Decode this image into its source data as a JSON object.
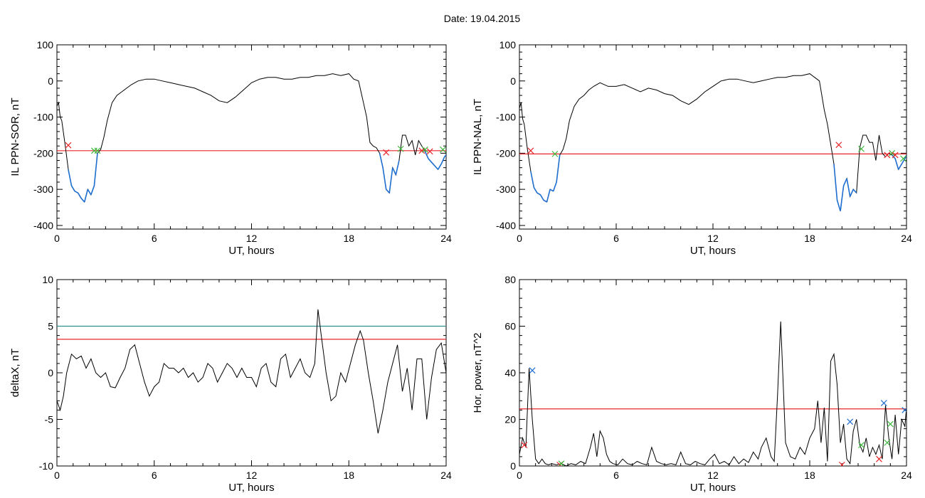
{
  "header": {
    "date_label": "Date:",
    "date_value": "19.04.2015"
  },
  "colors": {
    "trace": "#000000",
    "threshold_red": "#e8262a",
    "threshold_teal": "#2a9090",
    "highlight_blue": "#1f6fd0",
    "marker_red": "#e8262a",
    "marker_green": "#3cb83c",
    "marker_blue": "#1f6fd0"
  },
  "chart_data": [
    {
      "type": "line",
      "xlabel": "UT, hours",
      "ylabel": "IL PPN-SOR, nT",
      "xlim": [
        0,
        24
      ],
      "ylim": [
        -410,
        100
      ],
      "xticks": [
        0,
        6,
        12,
        18,
        24
      ],
      "yticks": [
        100,
        0,
        -100,
        -200,
        -300,
        -400
      ],
      "threshold": -193,
      "series": [
        {
          "x": [
            0,
            0.1,
            0.2,
            0.3,
            0.5,
            0.7,
            0.9,
            1.1,
            1.3,
            1.5,
            1.7,
            1.9,
            2.1,
            2.3,
            2.5,
            2.7,
            2.9,
            3.1,
            3.4,
            3.7,
            4.0,
            4.3,
            4.6,
            5.0,
            5.5,
            6.0,
            6.5,
            7.0,
            7.5,
            8.0,
            8.5,
            9.0,
            9.5,
            10.0,
            10.5,
            11.0,
            11.5,
            12.0,
            12.5,
            13.0,
            13.5,
            14.0,
            14.5,
            15.0,
            15.5,
            16.0,
            16.5,
            17.0,
            17.5,
            18.0,
            18.3,
            18.6,
            18.9,
            19.1,
            19.3,
            19.5,
            19.7,
            19.9,
            20.1,
            20.3,
            20.5,
            20.7,
            20.9,
            21.1,
            21.3,
            21.5,
            21.7,
            21.9,
            22.1,
            22.3,
            22.5,
            22.7,
            22.9,
            23.1,
            23.3,
            23.5,
            23.7,
            23.9,
            24.0
          ],
          "y": [
            -70,
            -60,
            -100,
            -110,
            -175,
            -245,
            -290,
            -305,
            -310,
            -325,
            -335,
            -300,
            -315,
            -290,
            -200,
            -190,
            -155,
            -110,
            -60,
            -40,
            -30,
            -20,
            -10,
            0,
            5,
            5,
            0,
            -5,
            -10,
            -15,
            -20,
            -30,
            -40,
            -55,
            -60,
            -45,
            -25,
            -5,
            5,
            10,
            10,
            5,
            5,
            10,
            10,
            15,
            15,
            20,
            15,
            20,
            5,
            0,
            -60,
            -100,
            -170,
            -180,
            -185,
            -200,
            -240,
            -300,
            -310,
            -240,
            -260,
            -220,
            -150,
            -150,
            -180,
            -165,
            -205,
            -165,
            -180,
            -195,
            -215,
            -225,
            -235,
            -245,
            -230,
            -210,
            -205
          ]
        }
      ],
      "highlight_below_threshold": true,
      "markers": [
        {
          "x": 0.7,
          "y": -178,
          "color": "red"
        },
        {
          "x": 2.3,
          "y": -193,
          "color": "green"
        },
        {
          "x": 2.5,
          "y": -193,
          "color": "green"
        },
        {
          "x": 20.3,
          "y": -198,
          "color": "red"
        },
        {
          "x": 21.2,
          "y": -188,
          "color": "green"
        },
        {
          "x": 22.5,
          "y": -193,
          "color": "red"
        },
        {
          "x": 22.7,
          "y": -190,
          "color": "green"
        },
        {
          "x": 23.0,
          "y": -195,
          "color": "red"
        },
        {
          "x": 23.8,
          "y": -190,
          "color": "green"
        }
      ]
    },
    {
      "type": "line",
      "xlabel": "UT, hours",
      "ylabel": "IL PPN-NAL, nT",
      "xlim": [
        0,
        24
      ],
      "ylim": [
        -410,
        100
      ],
      "xticks": [
        0,
        6,
        12,
        18,
        24
      ],
      "yticks": [
        100,
        0,
        -100,
        -200,
        -300,
        -400
      ],
      "threshold": -202,
      "series": [
        {
          "x": [
            0,
            0.1,
            0.2,
            0.3,
            0.5,
            0.7,
            0.9,
            1.1,
            1.3,
            1.5,
            1.7,
            1.9,
            2.1,
            2.3,
            2.5,
            2.7,
            2.9,
            3.1,
            3.4,
            3.7,
            4.0,
            4.3,
            4.6,
            5.0,
            5.5,
            6.0,
            6.5,
            7.0,
            7.5,
            8.0,
            8.5,
            9.0,
            9.5,
            10.0,
            10.5,
            11.0,
            11.5,
            12.0,
            12.5,
            13.0,
            13.5,
            14.0,
            14.5,
            15.0,
            15.5,
            16.0,
            16.5,
            17.0,
            17.5,
            18.0,
            18.3,
            18.6,
            18.9,
            19.1,
            19.3,
            19.5,
            19.7,
            19.9,
            20.1,
            20.3,
            20.5,
            20.7,
            20.9,
            21.1,
            21.3,
            21.5,
            21.7,
            21.9,
            22.1,
            22.3,
            22.5,
            22.7,
            22.9,
            23.1,
            23.3,
            23.5,
            23.7,
            23.9,
            24.0
          ],
          "y": [
            -75,
            -60,
            -105,
            -120,
            -190,
            -250,
            -295,
            -310,
            -315,
            -330,
            -335,
            -300,
            -305,
            -280,
            -205,
            -190,
            -160,
            -110,
            -70,
            -50,
            -40,
            -25,
            -15,
            -5,
            -15,
            -15,
            -10,
            -20,
            -30,
            -20,
            -25,
            -35,
            -40,
            -55,
            -65,
            -50,
            -30,
            -15,
            0,
            5,
            5,
            0,
            -5,
            0,
            5,
            10,
            10,
            15,
            15,
            20,
            10,
            0,
            -80,
            -120,
            -175,
            -230,
            -330,
            -360,
            -290,
            -270,
            -320,
            -300,
            -310,
            -185,
            -150,
            -150,
            -170,
            -170,
            -220,
            -150,
            -200,
            -210,
            -200,
            -205,
            -215,
            -245,
            -230,
            -215,
            -205
          ]
        }
      ],
      "highlight_below_threshold": true,
      "markers": [
        {
          "x": 0.7,
          "y": -193,
          "color": "red"
        },
        {
          "x": 2.2,
          "y": -202,
          "color": "green"
        },
        {
          "x": 19.8,
          "y": -177,
          "color": "red"
        },
        {
          "x": 21.2,
          "y": -188,
          "color": "green"
        },
        {
          "x": 22.8,
          "y": -205,
          "color": "red"
        },
        {
          "x": 23.1,
          "y": -200,
          "color": "green"
        },
        {
          "x": 23.3,
          "y": -205,
          "color": "red"
        },
        {
          "x": 23.8,
          "y": -215,
          "color": "green"
        }
      ]
    },
    {
      "type": "line",
      "xlabel": "UT, hours",
      "ylabel": "deltaX, nT",
      "xlim": [
        0,
        24
      ],
      "ylim": [
        -10,
        10
      ],
      "xticks": [
        0,
        6,
        12,
        18,
        24
      ],
      "yticks": [
        10,
        5,
        0,
        -5,
        -10
      ],
      "thresholds": [
        {
          "value": 5.0,
          "color": "teal"
        },
        {
          "value": 3.6,
          "color": "red"
        }
      ],
      "series": [
        {
          "x": [
            0,
            0.2,
            0.4,
            0.6,
            0.9,
            1.2,
            1.5,
            1.8,
            2.1,
            2.4,
            2.7,
            3.0,
            3.3,
            3.6,
            3.9,
            4.2,
            4.5,
            4.8,
            5.1,
            5.4,
            5.7,
            6.0,
            6.3,
            6.6,
            6.9,
            7.2,
            7.5,
            7.8,
            8.1,
            8.4,
            8.7,
            9.0,
            9.3,
            9.6,
            9.9,
            10.2,
            10.5,
            10.8,
            11.1,
            11.4,
            11.7,
            12.0,
            12.3,
            12.6,
            12.9,
            13.2,
            13.5,
            13.8,
            14.1,
            14.4,
            14.7,
            15.0,
            15.3,
            15.6,
            15.9,
            16.1,
            16.3,
            16.6,
            16.9,
            17.2,
            17.5,
            17.8,
            18.1,
            18.4,
            18.7,
            18.9,
            19.2,
            19.5,
            19.8,
            20.1,
            20.4,
            20.7,
            21.0,
            21.3,
            21.6,
            21.9,
            22.2,
            22.5,
            22.8,
            23.1,
            23.4,
            23.7,
            24.0
          ],
          "y": [
            -3,
            -4,
            -2.5,
            0,
            2,
            1.5,
            1.8,
            0.5,
            1.5,
            0,
            -0.5,
            0,
            -1.5,
            -1.6,
            -0.5,
            0.5,
            2.5,
            3,
            1,
            -1,
            -2.5,
            -1.5,
            -1,
            1,
            0.5,
            0.5,
            0,
            0.5,
            -0.5,
            0,
            -1,
            -0.5,
            1,
            0.5,
            -1,
            0,
            1,
            0.5,
            -0.5,
            0.5,
            -0.5,
            -0.5,
            -1.5,
            0.5,
            1,
            -1,
            -1.5,
            1.5,
            2,
            -0.5,
            0.5,
            1.5,
            0,
            -0.5,
            1,
            6.8,
            4,
            0,
            -3,
            -2.5,
            0,
            -1,
            1,
            3,
            4.5,
            3.5,
            0,
            -3,
            -6.5,
            -4,
            -1,
            1,
            3,
            -2,
            0.5,
            -4,
            1.5,
            1.5,
            -5,
            -0.5,
            2.5,
            3.2,
            0
          ]
        }
      ]
    },
    {
      "type": "line",
      "xlabel": "UT, hours",
      "ylabel": "Hor. power, nT^2",
      "xlim": [
        0,
        24
      ],
      "ylim": [
        0,
        80
      ],
      "xticks": [
        0,
        6,
        12,
        18,
        24
      ],
      "yticks": [
        80,
        60,
        40,
        20,
        0
      ],
      "threshold": 24.5,
      "series": [
        {
          "x": [
            0,
            0.2,
            0.4,
            0.6,
            0.8,
            1.0,
            1.2,
            1.4,
            1.6,
            1.8,
            2.0,
            2.3,
            2.6,
            2.9,
            3.2,
            3.5,
            3.8,
            4.1,
            4.4,
            4.6,
            4.8,
            5.0,
            5.2,
            5.4,
            5.6,
            5.8,
            6.1,
            6.4,
            6.7,
            7.0,
            7.3,
            7.6,
            7.9,
            8.2,
            8.5,
            8.8,
            9.1,
            9.4,
            9.7,
            10.0,
            10.3,
            10.6,
            10.9,
            11.2,
            11.5,
            11.8,
            12.1,
            12.4,
            12.7,
            13.0,
            13.3,
            13.6,
            13.9,
            14.2,
            14.5,
            14.8,
            15.0,
            15.3,
            15.6,
            15.8,
            16.0,
            16.2,
            16.5,
            16.8,
            17.1,
            17.4,
            17.7,
            18.0,
            18.3,
            18.5,
            18.7,
            18.9,
            19.1,
            19.3,
            19.5,
            19.7,
            19.9,
            20.1,
            20.3,
            20.5,
            20.7,
            20.9,
            21.1,
            21.3,
            21.5,
            21.7,
            21.9,
            22.1,
            22.3,
            22.5,
            22.7,
            22.9,
            23.1,
            23.3,
            23.5,
            23.7,
            23.9,
            24.0
          ],
          "y": [
            5,
            12,
            8,
            42,
            20,
            3,
            1,
            3,
            1,
            0.5,
            1,
            0.5,
            1,
            0,
            1,
            0.5,
            2,
            1,
            8,
            14,
            4,
            15,
            12,
            5,
            2,
            1,
            0.5,
            3,
            1,
            0.5,
            2,
            1,
            0.5,
            8,
            2,
            1,
            0.5,
            1,
            0.5,
            6,
            1,
            0.5,
            2,
            1,
            0.5,
            3,
            5,
            1,
            2,
            0.5,
            4,
            1,
            3,
            1.5,
            6,
            3,
            8,
            12,
            4,
            2,
            30,
            62,
            10,
            4,
            3,
            8,
            5,
            12,
            16,
            28,
            10,
            25,
            2,
            45,
            48,
            35,
            10,
            18,
            3,
            1,
            15,
            20,
            9,
            6,
            12,
            4,
            8,
            5,
            9,
            3,
            26,
            12,
            3,
            22,
            5,
            20,
            17,
            25
          ]
        }
      ],
      "markers": [
        {
          "x": 0.3,
          "y": 9,
          "color": "red"
        },
        {
          "x": 0.8,
          "y": 41,
          "color": "blue"
        },
        {
          "x": 2.5,
          "y": 0.5,
          "color": "red"
        },
        {
          "x": 2.6,
          "y": 1,
          "color": "green"
        },
        {
          "x": 20.0,
          "y": 0.5,
          "color": "red"
        },
        {
          "x": 20.5,
          "y": 19,
          "color": "blue"
        },
        {
          "x": 21.2,
          "y": 9,
          "color": "green"
        },
        {
          "x": 22.3,
          "y": 3,
          "color": "red"
        },
        {
          "x": 22.6,
          "y": 27,
          "color": "blue"
        },
        {
          "x": 22.8,
          "y": 10,
          "color": "green"
        },
        {
          "x": 23.0,
          "y": 18,
          "color": "green"
        },
        {
          "x": 23.9,
          "y": 24,
          "color": "blue"
        }
      ]
    }
  ]
}
